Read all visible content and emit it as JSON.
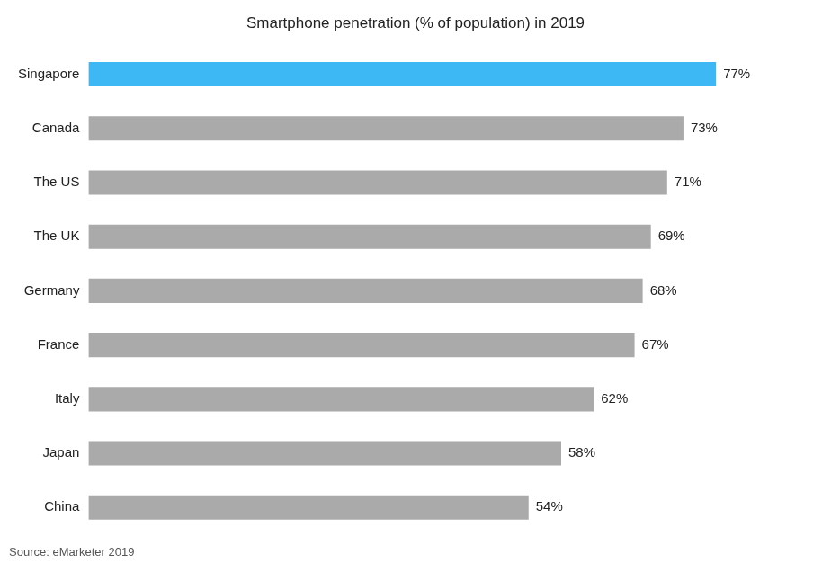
{
  "chart_data": {
    "type": "bar",
    "orientation": "horizontal",
    "title": "Smartphone penetration (% of population) in 2019",
    "annotation": "Source: eMarketer 2019",
    "categories": [
      "Singapore",
      "Canada",
      "The US",
      "The UK",
      "Germany",
      "France",
      "Italy",
      "Japan",
      "China"
    ],
    "values": [
      77,
      73,
      71,
      69,
      68,
      67,
      62,
      58,
      54
    ],
    "value_labels": [
      "77%",
      "73%",
      "71%",
      "69%",
      "68%",
      "67%",
      "62%",
      "58%",
      "54%"
    ],
    "colors": [
      "#3db8f5",
      "#aaaaaa",
      "#aaaaaa",
      "#aaaaaa",
      "#aaaaaa",
      "#aaaaaa",
      "#aaaaaa",
      "#aaaaaa",
      "#aaaaaa"
    ],
    "xlim": [
      0,
      90
    ],
    "grid": false,
    "tick_labels": "y",
    "data_labels": true
  }
}
